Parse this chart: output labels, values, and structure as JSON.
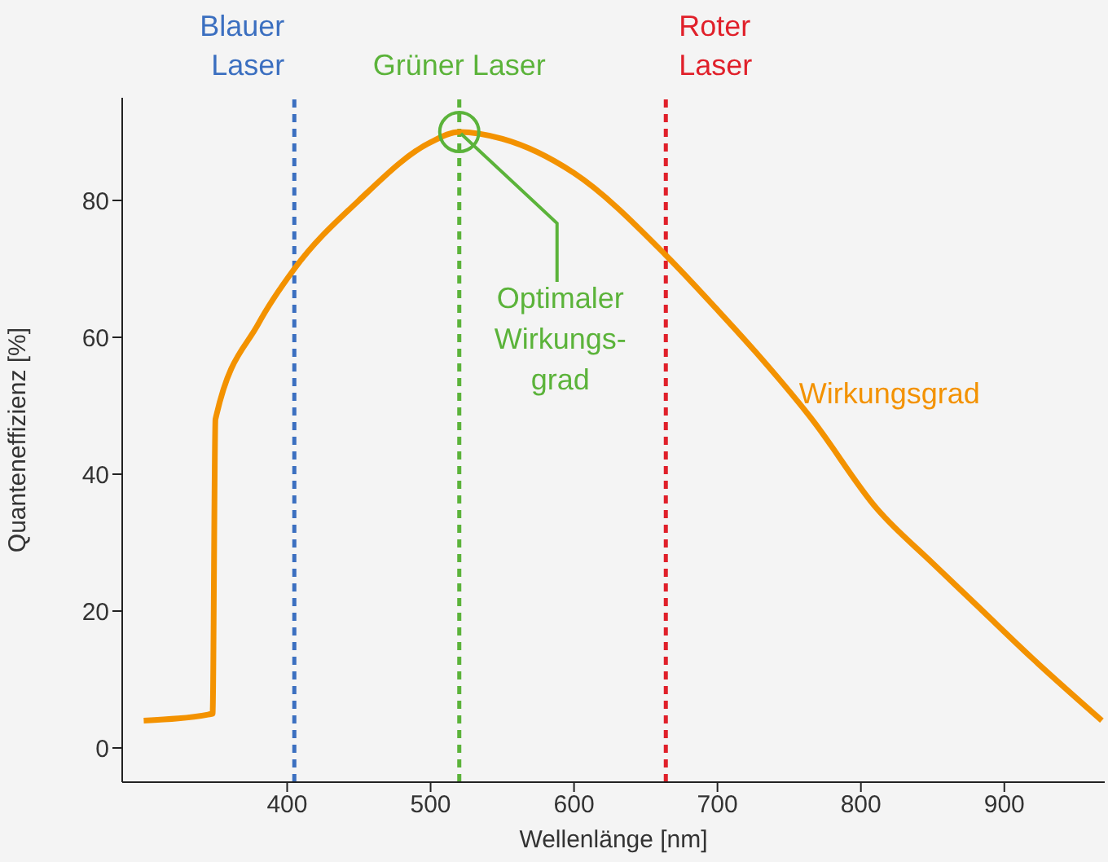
{
  "chart_data": {
    "type": "line",
    "xlabel": "Wellenlänge [nm]",
    "ylabel": "Quanteneffizienz  [%]",
    "x": [
      300,
      348,
      350,
      380,
      405,
      450,
      500,
      520,
      550,
      600,
      664,
      700,
      726,
      766,
      811,
      850,
      880,
      920,
      968
    ],
    "series": [
      {
        "name": "Wirkungsgrad",
        "color": "#f39200",
        "values": [
          4,
          5,
          48,
          62,
          70,
          80,
          88.5,
          90,
          89,
          84,
          72,
          64,
          58,
          48,
          35,
          27,
          21,
          13,
          4
        ]
      }
    ],
    "xlim": [
      285,
      970
    ],
    "xticks": [
      400,
      500,
      600,
      700,
      800,
      900
    ],
    "ylim": [
      -5,
      95
    ],
    "yticks": [
      0,
      20,
      40,
      60,
      80
    ],
    "ref_lines": [
      {
        "axis": "x",
        "value": 405,
        "label": "Blauer\nLaser",
        "color": "#3b6fc0",
        "line_style": "dashed"
      },
      {
        "axis": "x",
        "value": 520,
        "label": "Grüner Laser",
        "color": "#5bb33a",
        "line_style": "dashed"
      },
      {
        "axis": "x",
        "value": 664,
        "label": "Roter\nLaser",
        "color": "#e0202a",
        "line_style": "dashed"
      }
    ],
    "annotations": [
      {
        "text": "Optimaler\nWirkungs-\ngrad",
        "x": 520,
        "y": 90
      }
    ],
    "grid": false,
    "legend": false,
    "marker": "none",
    "line_style": "solid"
  }
}
